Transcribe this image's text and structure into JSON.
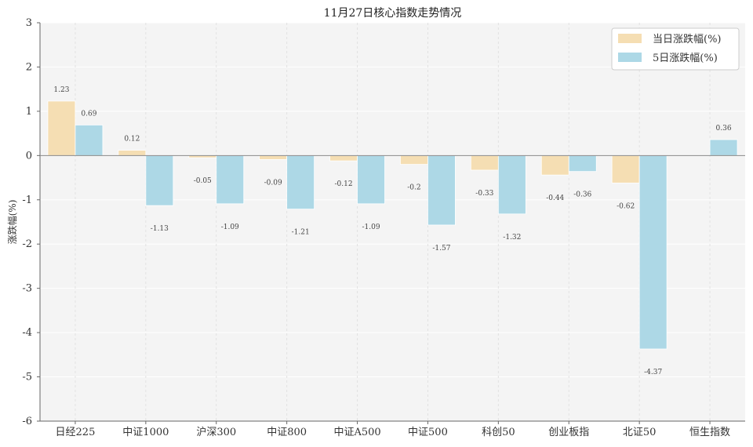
{
  "chart_data": {
    "type": "bar",
    "title": "11月27日核心指数走势情况",
    "xlabel": "",
    "ylabel": "涨跌幅(%)",
    "ylim": [
      -6,
      3
    ],
    "yticks": [
      3,
      2,
      1,
      0,
      -1,
      -2,
      -3,
      -4,
      -5,
      -6
    ],
    "categories": [
      "日经225",
      "中证1000",
      "沪深300",
      "中证800",
      "中证A500",
      "中证500",
      "科创50",
      "创业板指",
      "北证50",
      "恒生指数"
    ],
    "series": [
      {
        "name": "当日涨跌幅(%)",
        "color": "#f5deb3",
        "values": [
          1.23,
          0.12,
          -0.05,
          -0.09,
          -0.12,
          -0.2,
          -0.33,
          -0.44,
          -0.62,
          null
        ]
      },
      {
        "name": "5日涨跌幅(%)",
        "color": "#add8e6",
        "values": [
          0.69,
          -1.13,
          -1.09,
          -1.21,
          -1.09,
          -1.57,
          -1.32,
          -0.36,
          -4.37,
          0.36
        ]
      }
    ],
    "legend_position": "top-right",
    "grid": true
  }
}
